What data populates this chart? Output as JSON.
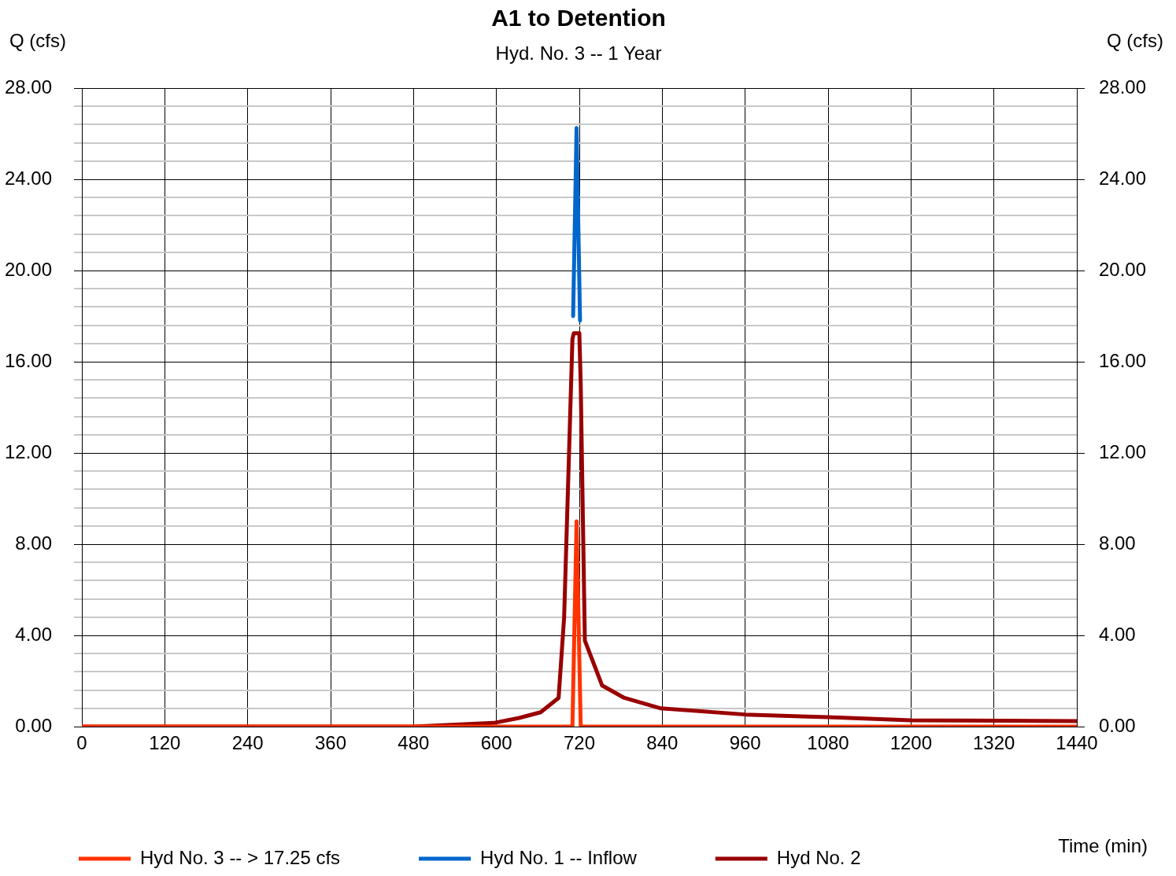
{
  "chart_data": {
    "type": "line",
    "title": "A1 to Detention",
    "subtitle": "Hyd. No. 3 -- 1 Year",
    "xlabel": "Time (min)",
    "ylabel": "Q (cfs)",
    "y2label": "Q (cfs)",
    "xlim": [
      0,
      1440
    ],
    "xticks": [
      0,
      120,
      240,
      360,
      480,
      600,
      720,
      840,
      960,
      1080,
      1200,
      1320,
      1440
    ],
    "ylim": [
      0,
      28
    ],
    "yticks": [
      {
        "value": 0,
        "label": "0.00"
      },
      {
        "value": 0.8,
        "label": null
      },
      {
        "value": 1.6,
        "label": null
      },
      {
        "value": 2.4,
        "label": null
      },
      {
        "value": 3.2,
        "label": null
      },
      {
        "value": 4,
        "label": "4.00"
      },
      {
        "value": 4.8,
        "label": null
      },
      {
        "value": 5.6,
        "label": null
      },
      {
        "value": 6.4,
        "label": null
      },
      {
        "value": 7.2,
        "label": null
      },
      {
        "value": 8,
        "label": "8.00"
      },
      {
        "value": 8.8,
        "label": null
      },
      {
        "value": 9.6,
        "label": null
      },
      {
        "value": 10.4,
        "label": null
      },
      {
        "value": 11.2,
        "label": null
      },
      {
        "value": 12,
        "label": "12.00"
      },
      {
        "value": 12.8,
        "label": null
      },
      {
        "value": 13.6,
        "label": null
      },
      {
        "value": 14.4,
        "label": null
      },
      {
        "value": 15.2,
        "label": null
      },
      {
        "value": 16,
        "label": "16.00"
      },
      {
        "value": 16.8,
        "label": null
      },
      {
        "value": 17.6,
        "label": null
      },
      {
        "value": 18.4,
        "label": null
      },
      {
        "value": 19.2,
        "label": null
      },
      {
        "value": 20,
        "label": "20.00"
      },
      {
        "value": 20.8,
        "label": null
      },
      {
        "value": 21.6,
        "label": null
      },
      {
        "value": 22.4,
        "label": null
      },
      {
        "value": 23.2,
        "label": null
      },
      {
        "value": 24,
        "label": "24.00"
      },
      {
        "value": 24.8,
        "label": null
      },
      {
        "value": 25.6,
        "label": null
      },
      {
        "value": 26.4,
        "label": null
      },
      {
        "value": 27.2,
        "label": null
      },
      {
        "value": 28,
        "label": "28.00"
      }
    ],
    "y2lim": [
      0,
      28
    ],
    "y2ticks": [
      {
        "value": 0,
        "label": "0.00"
      },
      {
        "value": 4,
        "label": "4.00"
      },
      {
        "value": 8,
        "label": "8.00"
      },
      {
        "value": 12,
        "label": "12.00"
      },
      {
        "value": 16,
        "label": "16.00"
      },
      {
        "value": 20,
        "label": "20.00"
      },
      {
        "value": 24,
        "label": "24.00"
      },
      {
        "value": 28,
        "label": "28.00"
      }
    ],
    "grid": true,
    "legend": "bottom",
    "marker": "none",
    "line_style": "solid",
    "series": [
      {
        "name": "Hyd No. 3 -- > 17.25 cfs",
        "color": "#ff3300",
        "x": [
          0,
          710,
          716,
          722,
          1440
        ],
        "values": [
          0,
          0,
          9.0,
          0,
          0
        ]
      },
      {
        "name": "Hyd No. 1 -- Inflow",
        "color": "#0066cc",
        "x": [
          711,
          716,
          721
        ],
        "values": [
          18.0,
          26.25,
          17.8
        ]
      },
      {
        "name": "Hyd No. 2",
        "color": "#990000",
        "x": [
          0,
          480,
          596,
          633,
          664,
          690,
          698,
          710,
          712,
          720,
          722,
          728,
          753,
          785,
          838,
          960,
          1080,
          1200,
          1440
        ],
        "values": [
          0,
          0,
          0.16,
          0.38,
          0.63,
          1.26,
          4.8,
          17.0,
          17.25,
          17.25,
          15.0,
          3.77,
          1.8,
          1.26,
          0.8,
          0.53,
          0.41,
          0.28,
          0.24
        ]
      }
    ]
  }
}
